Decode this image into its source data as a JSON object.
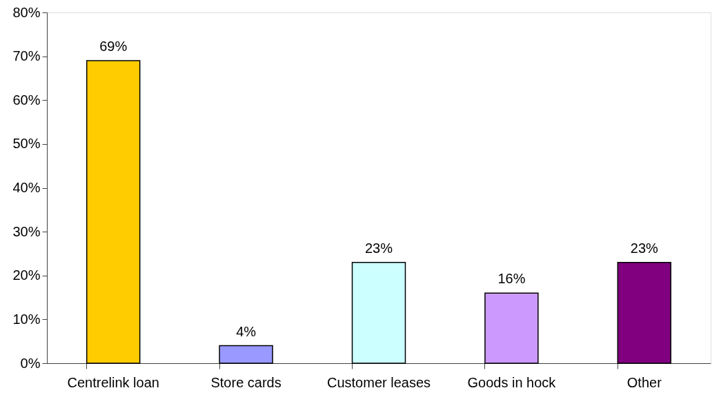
{
  "chart_data": {
    "type": "bar",
    "categories": [
      "Centrelink loan",
      "Store cards",
      "Customer leases",
      "Goods in hock",
      "Other"
    ],
    "values": [
      69,
      4,
      23,
      16,
      23
    ],
    "colors": [
      "#ffcc00",
      "#9999ff",
      "#ccffff",
      "#cc99ff",
      "#800080"
    ],
    "value_labels": [
      "69%",
      "4%",
      "23%",
      "16%",
      "23%"
    ],
    "ylim": [
      0,
      80
    ],
    "yticks": [
      {
        "value": 0,
        "label": "0%"
      },
      {
        "value": 10,
        "label": "10%"
      },
      {
        "value": 20,
        "label": "20%"
      },
      {
        "value": 30,
        "label": "30%"
      },
      {
        "value": 40,
        "label": "40%"
      },
      {
        "value": 50,
        "label": "50%"
      },
      {
        "value": 60,
        "label": "60%"
      },
      {
        "value": 70,
        "label": "70%"
      },
      {
        "value": 80,
        "label": "80%"
      }
    ]
  }
}
